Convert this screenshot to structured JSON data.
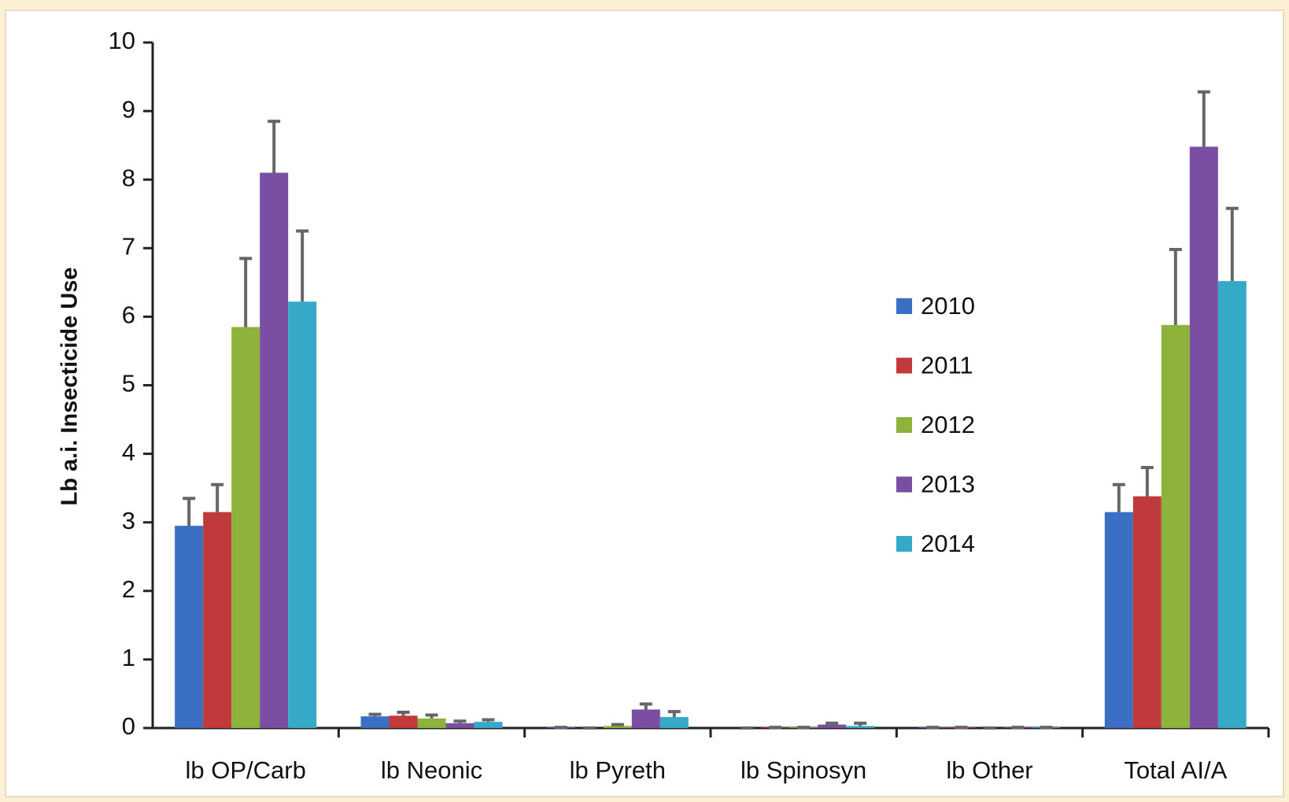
{
  "chart_data": {
    "type": "bar",
    "y_label": "Lb a.i. Insecticide Use",
    "categories": [
      "lb OP/Carb",
      "lb Neonic",
      "lb Pyreth",
      "lb Spinosyn",
      "lb Other",
      "Total AI/A"
    ],
    "series": [
      {
        "name": "2010",
        "color": "#3a6fc4",
        "values": [
          2.95,
          0.17,
          0.01,
          0,
          0.01,
          3.15
        ],
        "errors": [
          0.4,
          0.03,
          0,
          0,
          0,
          0.4
        ]
      },
      {
        "name": "2011",
        "color": "#c0393b",
        "values": [
          3.15,
          0.18,
          0,
          0.01,
          0.01,
          3.38
        ],
        "errors": [
          0.4,
          0.05,
          0,
          0,
          0,
          0.42
        ]
      },
      {
        "name": "2012",
        "color": "#8db33a",
        "values": [
          5.85,
          0.14,
          0.03,
          0.01,
          0,
          5.88
        ],
        "errors": [
          1.0,
          0.05,
          0.02,
          0,
          0,
          1.1
        ]
      },
      {
        "name": "2013",
        "color": "#7a4fa3",
        "values": [
          8.1,
          0.07,
          0.27,
          0.05,
          0.01,
          8.48
        ],
        "errors": [
          0.75,
          0.03,
          0.08,
          0.02,
          0,
          0.8
        ]
      },
      {
        "name": "2014",
        "color": "#35aac8",
        "values": [
          6.22,
          0.09,
          0.16,
          0.03,
          0.01,
          6.52
        ],
        "errors": [
          1.03,
          0.03,
          0.08,
          0.04,
          0,
          1.06
        ]
      }
    ],
    "ylim": [
      0,
      10
    ],
    "yticks": [
      0,
      1,
      2,
      3,
      4,
      5,
      6,
      7,
      8,
      9,
      10
    ]
  }
}
